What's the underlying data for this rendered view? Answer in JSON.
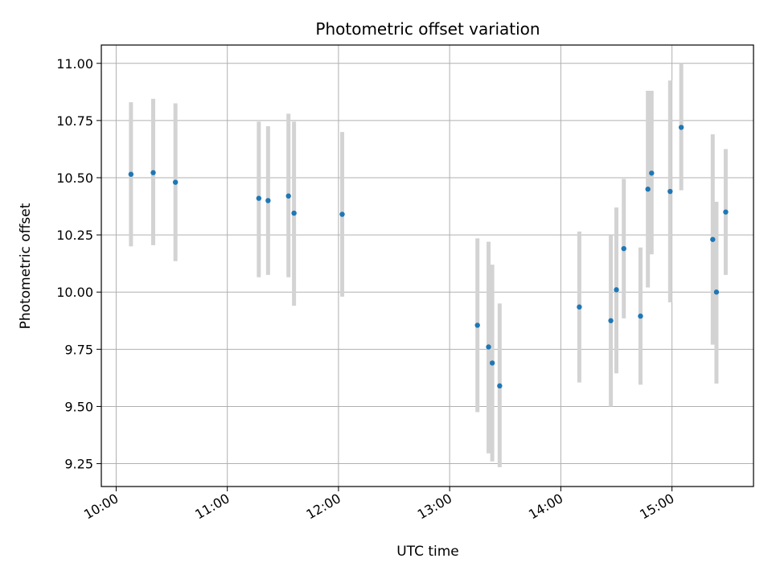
{
  "chart_data": {
    "type": "scatter",
    "title": "Photometric offset variation",
    "xlabel": "UTC time",
    "ylabel": "Photometric offset",
    "x_axis_type": "time",
    "xlim": [
      "09:52",
      "15:44"
    ],
    "ylim": [
      9.15,
      11.08
    ],
    "grid": true,
    "point_color": "#1f77b4",
    "errorbar_color": "#d3d3d3",
    "x_ticks": [
      "10:00",
      "11:00",
      "12:00",
      "13:00",
      "14:00",
      "15:00"
    ],
    "y_ticks": [
      "9.25",
      "9.50",
      "9.75",
      "10.00",
      "10.25",
      "10.50",
      "10.75",
      "11.00"
    ],
    "points": [
      {
        "x": "10:08",
        "y": 10.515,
        "low": 10.2,
        "high": 10.83
      },
      {
        "x": "10:20",
        "y": 10.522,
        "low": 10.205,
        "high": 10.845
      },
      {
        "x": "10:32",
        "y": 10.48,
        "low": 10.135,
        "high": 10.825
      },
      {
        "x": "11:17",
        "y": 10.41,
        "low": 10.065,
        "high": 10.745
      },
      {
        "x": "11:22",
        "y": 10.4,
        "low": 10.075,
        "high": 10.725
      },
      {
        "x": "11:33",
        "y": 10.42,
        "low": 10.065,
        "high": 10.78
      },
      {
        "x": "11:36",
        "y": 10.345,
        "low": 9.94,
        "high": 10.745
      },
      {
        "x": "12:02",
        "y": 10.34,
        "low": 9.98,
        "high": 10.7
      },
      {
        "x": "13:15",
        "y": 9.855,
        "low": 9.475,
        "high": 10.235
      },
      {
        "x": "13:21",
        "y": 9.76,
        "low": 9.295,
        "high": 10.22
      },
      {
        "x": "13:23",
        "y": 9.69,
        "low": 9.26,
        "high": 10.12
      },
      {
        "x": "13:27",
        "y": 9.59,
        "low": 9.235,
        "high": 9.95
      },
      {
        "x": "14:10",
        "y": 9.935,
        "low": 9.605,
        "high": 10.265
      },
      {
        "x": "14:27",
        "y": 9.875,
        "low": 9.5,
        "high": 10.25
      },
      {
        "x": "14:30",
        "y": 10.01,
        "low": 9.645,
        "high": 10.37
      },
      {
        "x": "14:34",
        "y": 10.19,
        "low": 9.885,
        "high": 10.495
      },
      {
        "x": "14:43",
        "y": 9.895,
        "low": 9.595,
        "high": 10.195
      },
      {
        "x": "14:47",
        "y": 10.45,
        "low": 10.02,
        "high": 10.88
      },
      {
        "x": "14:49",
        "y": 10.52,
        "low": 10.165,
        "high": 10.88
      },
      {
        "x": "14:59",
        "y": 10.44,
        "low": 9.955,
        "high": 10.925
      },
      {
        "x": "15:05",
        "y": 10.72,
        "low": 10.445,
        "high": 11.0
      },
      {
        "x": "15:22",
        "y": 10.23,
        "low": 9.77,
        "high": 10.69
      },
      {
        "x": "15:24",
        "y": 10.0,
        "low": 9.6,
        "high": 10.395
      },
      {
        "x": "15:29",
        "y": 10.35,
        "low": 10.075,
        "high": 10.625
      }
    ]
  }
}
